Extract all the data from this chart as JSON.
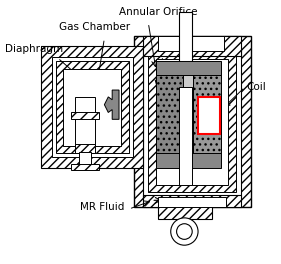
{
  "background": "#ffffff",
  "line_color": "#000000",
  "labels": {
    "annular_orifice": "Annular Orifice",
    "gas_chamber": "Gas Chamber",
    "diaphragm": "Diaphragm",
    "coil": "Coil",
    "mr_fluid": "MR Fluid"
  },
  "layout": {
    "figsize": [
      2.81,
      2.64
    ],
    "dpi": 100,
    "xlim": [
      0,
      281
    ],
    "ylim": [
      0,
      264
    ]
  }
}
